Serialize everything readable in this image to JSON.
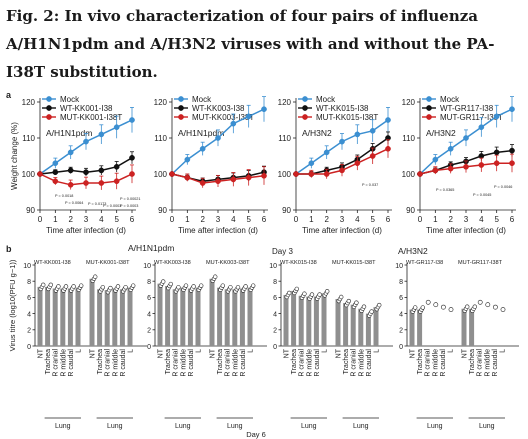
{
  "figure": {
    "title": "Fig. 2: In vivo characterization of four pairs of influenza A/H1N1pdm and A/H3N2 viruses with and without the PA-I38T substitution."
  },
  "colors": {
    "mock": "#3b8fd1",
    "wt": "#111111",
    "mut": "#cc2222",
    "bar": "#8f8f8f",
    "axis": "#222222"
  },
  "chart_data": [
    {
      "type": "line",
      "panel_label": "a",
      "subtitle": "A/H1N1pdm",
      "xlabel": "Time after infection (d)",
      "ylabel": "Weight change (%)",
      "x": [
        0,
        1,
        2,
        3,
        4,
        5,
        6
      ],
      "xlim": [
        0,
        6
      ],
      "ylim": [
        90,
        120
      ],
      "xticks": [
        "0",
        "1",
        "2",
        "3",
        "4",
        "5",
        "6"
      ],
      "yticks": [
        "90",
        "100",
        "110",
        "120"
      ],
      "legend": [
        "Mock",
        "WT-KK001-I38",
        "MUT-KK001-I38T"
      ],
      "legend_position": "top",
      "series": [
        {
          "name": "Mock",
          "values": [
            100,
            103,
            106,
            109,
            111,
            113,
            115
          ]
        },
        {
          "name": "WT-KK001-I38",
          "values": [
            100,
            100.5,
            101,
            100.5,
            101,
            102,
            104.5
          ]
        },
        {
          "name": "MUT-KK001-I38T",
          "values": [
            100,
            98,
            97,
            97.5,
            97.5,
            98,
            100
          ]
        }
      ],
      "annotations": [
        "P = 0.0018",
        "P = 0.0064",
        "P = 0.0173",
        "P = 0.0003",
        "P = 0.00021",
        "P = 0.0003"
      ]
    },
    {
      "type": "line",
      "subtitle": "A/H1N1pdm",
      "xlabel": "Time after infection (d)",
      "ylabel": "",
      "x": [
        0,
        1,
        2,
        3,
        4,
        5,
        6
      ],
      "xlim": [
        0,
        6
      ],
      "ylim": [
        90,
        120
      ],
      "xticks": [
        "0",
        "1",
        "2",
        "3",
        "4",
        "5",
        "6"
      ],
      "yticks": [
        "90",
        "100",
        "110",
        "120"
      ],
      "legend": [
        "Mock",
        "WT-KK003-I38",
        "MUT-KK003-I38T"
      ],
      "legend_position": "top",
      "series": [
        {
          "name": "Mock",
          "values": [
            100,
            104,
            107,
            110,
            114,
            116,
            118
          ]
        },
        {
          "name": "WT-KK003-I38",
          "values": [
            100,
            99,
            98,
            98.5,
            99,
            99.5,
            100.5
          ]
        },
        {
          "name": "MUT-KK003-I38T",
          "values": [
            100,
            99,
            97.5,
            98,
            98.5,
            99,
            99.5
          ]
        }
      ],
      "annotations": []
    },
    {
      "type": "line",
      "subtitle": "A/H3N2",
      "xlabel": "Time after infection (d)",
      "ylabel": "",
      "x": [
        0,
        1,
        2,
        3,
        4,
        5,
        6
      ],
      "xlim": [
        0,
        6
      ],
      "ylim": [
        90,
        120
      ],
      "xticks": [
        "0",
        "1",
        "2",
        "3",
        "4",
        "5",
        "6"
      ],
      "yticks": [
        "90",
        "100",
        "110",
        "120"
      ],
      "legend": [
        "Mock",
        "WT-KK015-I38",
        "MUT-KK015-I38T"
      ],
      "legend_position": "top",
      "series": [
        {
          "name": "Mock",
          "values": [
            100,
            103,
            106,
            109,
            111,
            112,
            115
          ]
        },
        {
          "name": "WT-KK015-I38",
          "values": [
            100,
            100,
            101,
            102,
            104,
            107,
            110
          ]
        },
        {
          "name": "MUT-KK015-I38T",
          "values": [
            100,
            100,
            100,
            101,
            103,
            105,
            107
          ]
        }
      ],
      "annotations": [
        "P = 0.037"
      ]
    },
    {
      "type": "line",
      "subtitle": "A/H3N2",
      "xlabel": "Time after infection (d)",
      "ylabel": "",
      "x": [
        0,
        1,
        2,
        3,
        4,
        5,
        6
      ],
      "xlim": [
        0,
        6
      ],
      "ylim": [
        90,
        120
      ],
      "xticks": [
        "0",
        "1",
        "2",
        "3",
        "4",
        "5",
        "6"
      ],
      "yticks": [
        "90",
        "100",
        "110",
        "120"
      ],
      "legend": [
        "Mock",
        "WT-GR117-I38",
        "MUT-GR117-I38T"
      ],
      "legend_position": "top",
      "series": [
        {
          "name": "Mock",
          "values": [
            100,
            104,
            107,
            110,
            113,
            116,
            118
          ]
        },
        {
          "name": "WT-GR117-I38",
          "values": [
            100,
            101,
            102.5,
            103.5,
            105,
            106,
            106.5
          ]
        },
        {
          "name": "MUT-GR117-I38T",
          "values": [
            100,
            101,
            101.5,
            102,
            102.5,
            103,
            103
          ]
        }
      ],
      "annotations": [
        "P = 0.0365",
        "P = 0.0045",
        "P = 0.0046"
      ]
    },
    {
      "type": "bar",
      "panel_label": "b",
      "subtitle": "A/H1N1pdm",
      "header": "Day 3",
      "ylabel": "Virus titre (log10(PFU g−1))",
      "ylim": [
        0,
        10
      ],
      "yticks": [
        "0",
        "2",
        "4",
        "6",
        "8",
        "10"
      ],
      "groups": [
        {
          "name": "WT-KK001-I38",
          "categories": [
            "NT",
            "Trachea",
            "R cranial",
            "R middle",
            "R caudal",
            "L"
          ],
          "values": [
            7.3,
            7.3,
            7.1,
            7.1,
            7.1,
            7.2
          ]
        },
        {
          "name": "MUT-KK001-I38T",
          "categories": [
            "NT",
            "Trachea",
            "R cranial",
            "R middle",
            "R caudal",
            "L"
          ],
          "values": [
            8.3,
            7.0,
            6.9,
            7.1,
            7.0,
            7.2
          ]
        },
        {
          "name": "WT-KK003-I38",
          "categories": [
            "NT",
            "Trachea",
            "R cranial",
            "R middle",
            "R caudal",
            "L"
          ],
          "values": [
            7.7,
            7.4,
            7.0,
            7.2,
            7.1,
            7.2
          ]
        },
        {
          "name": "MUT-KK003-I38T",
          "categories": [
            "NT",
            "Trachea",
            "R cranial",
            "R middle",
            "R caudal",
            "L"
          ],
          "values": [
            8.3,
            7.2,
            7.0,
            7.0,
            7.1,
            7.2
          ]
        }
      ],
      "lung_label": "Lung"
    },
    {
      "type": "bar",
      "subtitle": "A/H3N2",
      "ylim": [
        0,
        10
      ],
      "yticks": [
        "0",
        "2",
        "4",
        "6",
        "8",
        "10"
      ],
      "groups": [
        {
          "name": "WT-KK015-I38",
          "categories": [
            "NT",
            "Trachea",
            "R cranial",
            "R middle",
            "R caudal",
            "L"
          ],
          "values": [
            6.3,
            6.8,
            6.2,
            6.1,
            6.1,
            6.5
          ]
        },
        {
          "name": "MUT-KK015-I38T",
          "categories": [
            "NT",
            "Trachea",
            "R cranial",
            "R middle",
            "R caudal",
            "L"
          ],
          "values": [
            5.8,
            5.3,
            5.1,
            4.6,
            4.0,
            4.8
          ]
        },
        {
          "name": "WT-GR117-I38",
          "categories": [
            "NT",
            "Trachea",
            "R cranial",
            "R middle",
            "R caudal",
            "L"
          ],
          "values": [
            4.5,
            4.5,
            0,
            0,
            0,
            0
          ]
        },
        {
          "name": "MUT-GR117-I38T",
          "categories": [
            "NT",
            "Trachea",
            "R cranial",
            "R middle",
            "R caudal",
            "L"
          ],
          "values": [
            4.6,
            4.6,
            0,
            0,
            0,
            0
          ]
        }
      ],
      "lung_label": "Lung"
    }
  ],
  "footer": {
    "day6_label": "Day 6"
  }
}
